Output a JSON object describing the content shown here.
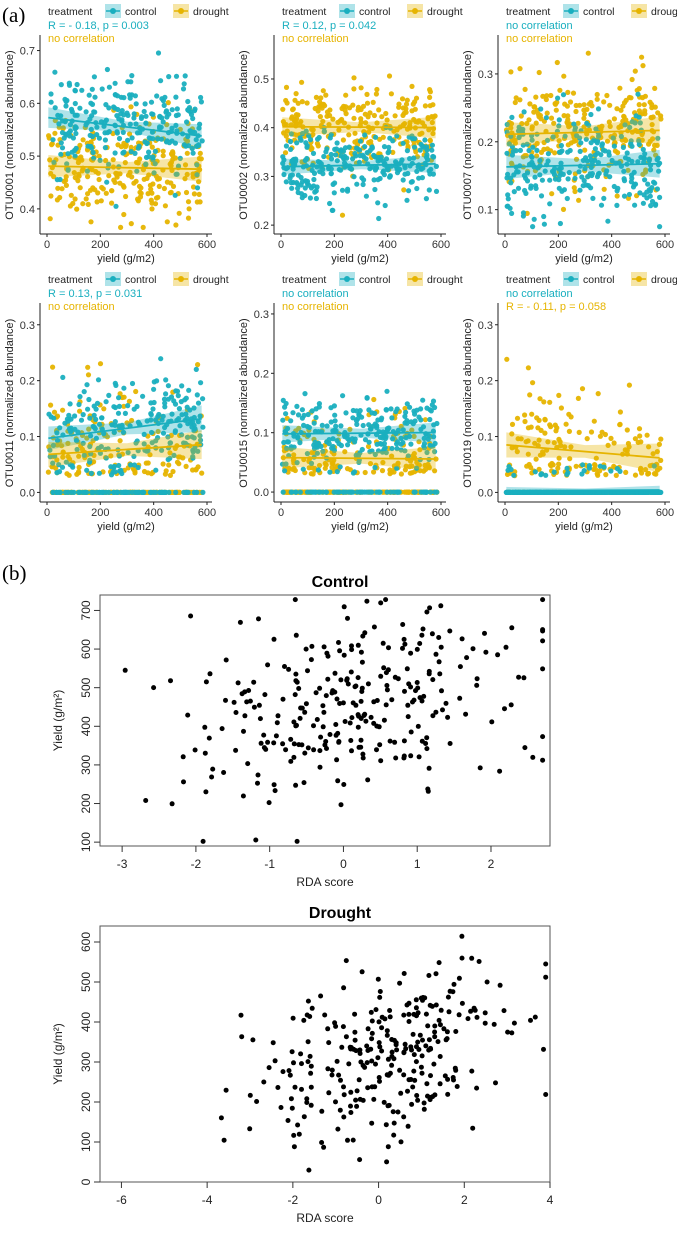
{
  "panel_labels": {
    "a": "(a)",
    "b": "(b)"
  },
  "colors": {
    "control": "#1aafbf",
    "drought": "#e6b400",
    "points_b": "#000000"
  },
  "chart_data": [
    {
      "type": "scatter",
      "panel": "a",
      "legend": {
        "title": "treatment",
        "entries": [
          "control",
          "drought"
        ],
        "placement": "top"
      },
      "xlabel": "yield (g/m2)",
      "xlim": [
        0,
        600
      ],
      "xticks": [
        0,
        200,
        400,
        600
      ],
      "subplots": [
        {
          "ylabel": "OTU0001 (normalized abundance)",
          "ylim": [
            0.36,
            0.72
          ],
          "yticks": [
            0.4,
            0.5,
            0.6,
            0.7
          ],
          "annotations": {
            "control": "R = - 0.18, p = 0.003",
            "drought": "no correlation"
          },
          "control": {
            "intercept": 0.573,
            "slope": -6e-05,
            "sd": 0.045,
            "zero_frac": 0,
            "n": 260
          },
          "drought": {
            "intercept": 0.481,
            "slope": -1e-05,
            "sd": 0.05,
            "zero_frac": 0,
            "n": 260
          }
        },
        {
          "ylabel": "OTU0002 (normalized abundance)",
          "ylim": [
            0.19,
            0.58
          ],
          "yticks": [
            0.2,
            0.3,
            0.4,
            0.5
          ],
          "annotations": {
            "control": "R = 0.12, p = 0.042",
            "drought": "no correlation"
          },
          "control": {
            "intercept": 0.32,
            "slope": 1e-05,
            "sd": 0.035,
            "zero_frac": 0,
            "n": 260
          },
          "drought": {
            "intercept": 0.402,
            "slope": -3e-06,
            "sd": 0.045,
            "zero_frac": 0,
            "n": 260
          }
        },
        {
          "ylabel": "OTU0007 (normalized abundance)",
          "ylim": [
            0.07,
            0.35
          ],
          "yticks": [
            0.1,
            0.2,
            0.3
          ],
          "annotations": {
            "control": "no correlation",
            "drought": "no correlation"
          },
          "control": {
            "intercept": 0.163,
            "slope": 8e-06,
            "sd": 0.04,
            "zero_frac": 0,
            "n": 260
          },
          "drought": {
            "intercept": 0.211,
            "slope": 1e-05,
            "sd": 0.04,
            "zero_frac": 0,
            "n": 260
          }
        },
        {
          "ylabel": "OTU0011 (normalized abundance)",
          "ylim": [
            -0.01,
            0.33
          ],
          "yticks": [
            0.0,
            0.1,
            0.2,
            0.3
          ],
          "annotations": {
            "control": "R = 0.13, p = 0.031",
            "drought": "no correlation"
          },
          "control": {
            "intercept": 0.097,
            "slope": 6e-05,
            "sd": 0.05,
            "zero_frac": 0.25,
            "n": 300
          },
          "drought": {
            "intercept": 0.068,
            "slope": 3e-05,
            "sd": 0.055,
            "zero_frac": 0.45,
            "n": 300
          }
        },
        {
          "ylabel": "OTU0015 (normalized abundance)",
          "ylim": [
            -0.01,
            0.31
          ],
          "yticks": [
            0.0,
            0.1,
            0.2,
            0.3
          ],
          "annotations": {
            "control": "no correlation",
            "drought": "no correlation"
          },
          "control": {
            "intercept": 0.098,
            "slope": 4e-06,
            "sd": 0.03,
            "zero_frac": 0.2,
            "n": 300
          },
          "drought": {
            "intercept": 0.058,
            "slope": -4e-06,
            "sd": 0.04,
            "zero_frac": 0.5,
            "n": 300
          }
        },
        {
          "ylabel": "OTU0019 (normalized abundance)",
          "ylim": [
            -0.01,
            0.33
          ],
          "yticks": [
            0.0,
            0.1,
            0.2,
            0.3
          ],
          "annotations": {
            "control": "no correlation",
            "drought": "R = - 0.11, p = 0.058"
          },
          "control": {
            "intercept": 0.003,
            "slope": 2e-06,
            "sd": 0.0,
            "zero_frac": 0.9,
            "n": 300
          },
          "drought": {
            "intercept": 0.085,
            "slope": -4e-05,
            "sd": 0.055,
            "zero_frac": 0.45,
            "n": 300
          }
        }
      ]
    },
    {
      "type": "scatter",
      "panel": "b",
      "title": "Control",
      "xlabel": "RDA score",
      "ylabel": "Yield  (g/m²)",
      "xlim": [
        -3.3,
        2.8
      ],
      "ylim": [
        90,
        740
      ],
      "xticks": [
        -3,
        -2,
        -1,
        0,
        1,
        2
      ],
      "yticks": [
        100,
        200,
        300,
        400,
        500,
        600,
        700
      ],
      "trend": {
        "intercept": 440,
        "slope": 45,
        "sd": 120,
        "n": 290,
        "x_sd": 1.05,
        "x_mean": 0.1
      }
    },
    {
      "type": "scatter",
      "panel": "b",
      "title": "Drought",
      "xlabel": "RDA score",
      "ylabel": "Yield  (g/m²)",
      "xlim": [
        -6.5,
        4.0
      ],
      "ylim": [
        0,
        640
      ],
      "xticks": [
        -6,
        -4,
        -2,
        0,
        2,
        4
      ],
      "yticks": [
        0,
        100,
        200,
        300,
        400,
        500,
        600
      ],
      "trend": {
        "intercept": 300,
        "slope": 28,
        "sd": 105,
        "n": 290,
        "x_sd": 1.5,
        "x_mean": 0.2
      }
    }
  ]
}
